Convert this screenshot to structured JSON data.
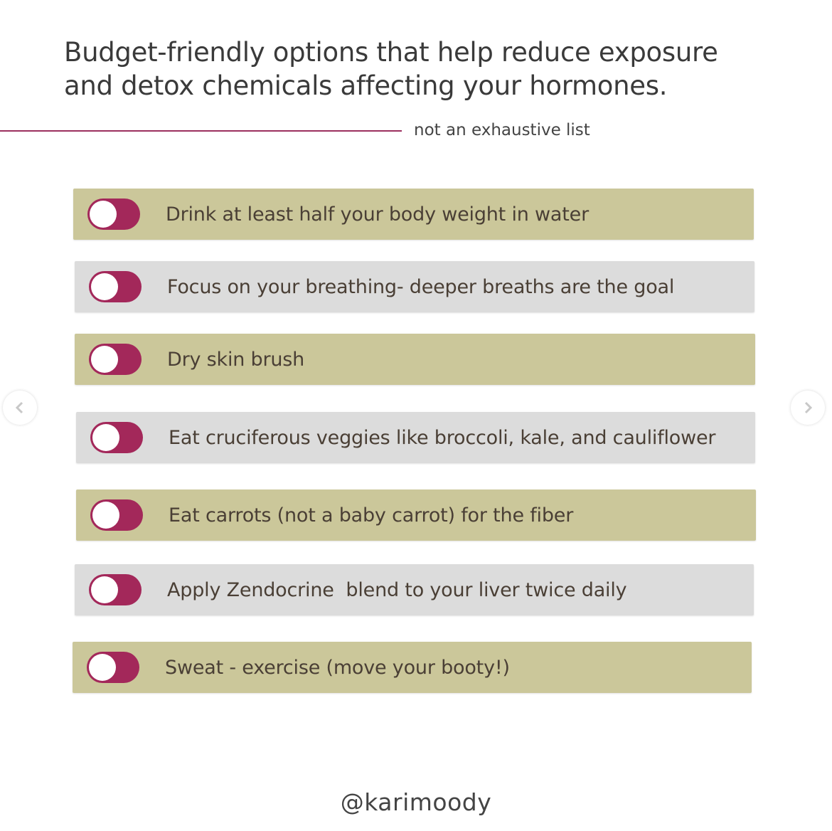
{
  "header": {
    "title_line1": "Budget-friendly options that help reduce exposure",
    "title_line2": "and detox chemicals affecting your hormones.",
    "subtitle": "not an exhaustive list"
  },
  "colors": {
    "olive": "#cbc79a",
    "gray": "#dcdcdc",
    "toggle": "#a3285a",
    "accent_rule": "#9b2f5e"
  },
  "items": [
    {
      "label": "Drink at least half your body weight in water",
      "bg": "#cbc79a",
      "toggle_on": false
    },
    {
      "label": "Focus on your breathing- deeper breaths are the goal",
      "bg": "#dcdcdc",
      "toggle_on": false
    },
    {
      "label": "Dry skin brush",
      "bg": "#cbc79a",
      "toggle_on": false
    },
    {
      "label": "Eat cruciferous veggies like broccoli, kale, and cauliflower",
      "bg": "#dcdcdc",
      "toggle_on": false
    },
    {
      "label": "Eat carrots (not a baby carrot) for the fiber",
      "bg": "#cbc79a",
      "toggle_on": false
    },
    {
      "label": "Apply Zendocrine  blend to your liver twice daily",
      "bg": "#dcdcdc",
      "toggle_on": false
    },
    {
      "label": "Sweat - exercise (move your booty!)",
      "bg": "#cbc79a",
      "toggle_on": false
    }
  ],
  "nav": {
    "prev_icon": "chevron-left-icon",
    "next_icon": "chevron-right-icon"
  },
  "footer": {
    "handle": "@karimoody"
  }
}
